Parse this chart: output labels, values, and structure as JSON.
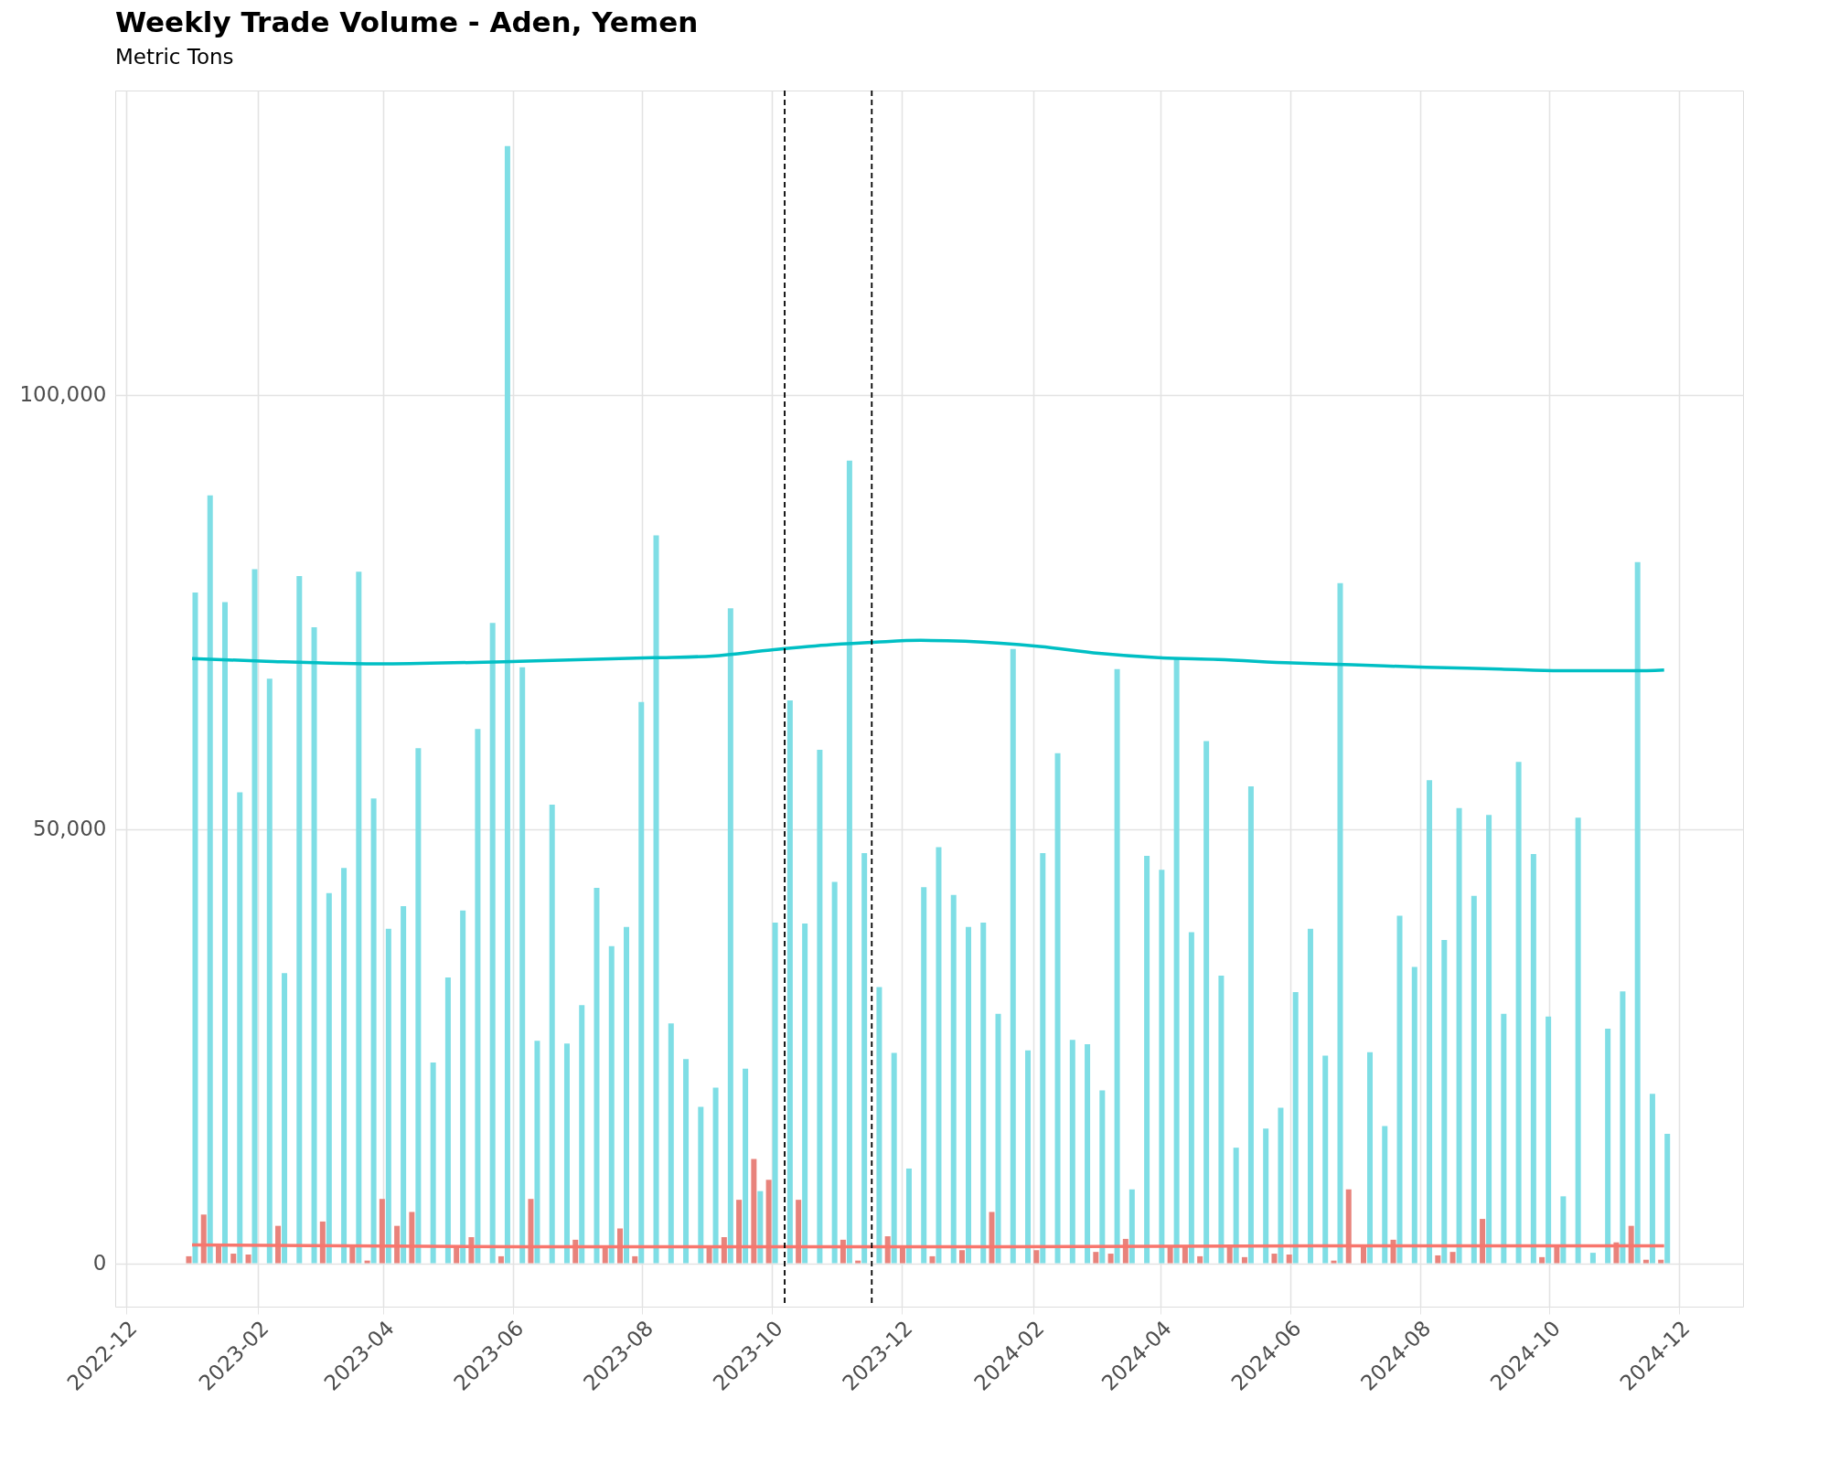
{
  "chart_data": {
    "type": "bar",
    "title": "Weekly Trade Volume - Aden, Yemen",
    "subtitle": "Metric Tons",
    "x": [
      "2023-01-01",
      "2023-01-08",
      "2023-01-15",
      "2023-01-22",
      "2023-01-29",
      "2023-02-05",
      "2023-02-12",
      "2023-02-19",
      "2023-02-26",
      "2023-03-05",
      "2023-03-12",
      "2023-03-19",
      "2023-03-26",
      "2023-04-02",
      "2023-04-09",
      "2023-04-16",
      "2023-04-23",
      "2023-04-30",
      "2023-05-07",
      "2023-05-14",
      "2023-05-21",
      "2023-05-28",
      "2023-06-04",
      "2023-06-11",
      "2023-06-18",
      "2023-06-25",
      "2023-07-02",
      "2023-07-09",
      "2023-07-16",
      "2023-07-23",
      "2023-07-30",
      "2023-08-06",
      "2023-08-13",
      "2023-08-20",
      "2023-08-27",
      "2023-09-03",
      "2023-09-10",
      "2023-09-17",
      "2023-09-24",
      "2023-10-01",
      "2023-10-08",
      "2023-10-15",
      "2023-10-22",
      "2023-10-29",
      "2023-11-05",
      "2023-11-12",
      "2023-11-19",
      "2023-11-26",
      "2023-12-03",
      "2023-12-10",
      "2023-12-17",
      "2023-12-24",
      "2023-12-31",
      "2024-01-07",
      "2024-01-14",
      "2024-01-21",
      "2024-01-28",
      "2024-02-04",
      "2024-02-11",
      "2024-02-18",
      "2024-02-25",
      "2024-03-03",
      "2024-03-10",
      "2024-03-17",
      "2024-03-24",
      "2024-03-31",
      "2024-04-07",
      "2024-04-14",
      "2024-04-21",
      "2024-04-28",
      "2024-05-05",
      "2024-05-12",
      "2024-05-19",
      "2024-05-26",
      "2024-06-02",
      "2024-06-09",
      "2024-06-16",
      "2024-06-23",
      "2024-06-30",
      "2024-07-07",
      "2024-07-14",
      "2024-07-21",
      "2024-07-28",
      "2024-08-04",
      "2024-08-11",
      "2024-08-18",
      "2024-08-25",
      "2024-09-01",
      "2024-09-08",
      "2024-09-15",
      "2024-09-22",
      "2024-09-29",
      "2024-10-06",
      "2024-10-13",
      "2024-10-20",
      "2024-10-27",
      "2024-11-03",
      "2024-11-10",
      "2024-11-17",
      "2024-11-24"
    ],
    "series": [
      {
        "color": "#e8837c",
        "values": [
          800,
          5600,
          2000,
          1100,
          1000,
          null,
          4300,
          null,
          null,
          4800,
          null,
          2000,
          300,
          7400,
          4300,
          5900,
          null,
          null,
          2000,
          3000,
          null,
          800,
          null,
          7400,
          null,
          null,
          2700,
          null,
          2000,
          4000,
          800,
          null,
          null,
          null,
          null,
          2000,
          3000,
          7300,
          12000,
          9600,
          null,
          7300,
          null,
          null,
          2700,
          300,
          null,
          3100,
          2000,
          null,
          800,
          null,
          1500,
          null,
          5900,
          null,
          null,
          1500,
          null,
          null,
          null,
          1300,
          1100,
          2800,
          null,
          null,
          2000,
          2000,
          800,
          null,
          2000,
          700,
          null,
          1100,
          1000,
          null,
          null,
          300,
          8500,
          2000,
          null,
          2700,
          null,
          null,
          900,
          1300,
          null,
          5100,
          null,
          null,
          null,
          700,
          2000,
          null,
          null,
          null,
          2400,
          4300,
          400,
          400
        ]
      },
      {
        "color": "#7fdee5",
        "values": [
          77200,
          88400,
          76100,
          54200,
          79900,
          67300,
          33400,
          79100,
          73200,
          42600,
          45500,
          79600,
          53500,
          38500,
          41100,
          59300,
          23100,
          32900,
          40600,
          61500,
          73700,
          128600,
          68600,
          25600,
          52800,
          25300,
          29700,
          43200,
          36500,
          38700,
          64600,
          83800,
          27600,
          23500,
          18000,
          20200,
          75400,
          22400,
          8300,
          39200,
          64800,
          39100,
          59100,
          43900,
          92400,
          47200,
          31800,
          24200,
          10900,
          43300,
          47900,
          42400,
          38700,
          39200,
          28700,
          70700,
          24500,
          47200,
          58700,
          25700,
          25200,
          19900,
          68400,
          8500,
          46900,
          45300,
          69700,
          38100,
          60100,
          33100,
          13300,
          54900,
          15500,
          17900,
          31200,
          38500,
          23900,
          78300,
          null,
          24300,
          15800,
          40000,
          34100,
          55600,
          37200,
          52400,
          42300,
          51600,
          28700,
          57700,
          47100,
          28400,
          7700,
          51300,
          1200,
          27000,
          31300,
          80700,
          19500,
          14900
        ]
      },
      {
        "type": "line",
        "color": "#00bfc4",
        "x": [
          "2023-01-01",
          "2023-02-05",
          "2023-04-02",
          "2023-06-04",
          "2023-08-06",
          "2023-09-03",
          "2023-10-01",
          "2023-10-29",
          "2023-11-19",
          "2023-12-10",
          "2023-12-31",
          "2024-02-04",
          "2024-03-03",
          "2024-03-31",
          "2024-04-28",
          "2024-06-02",
          "2024-06-30",
          "2024-08-04",
          "2024-09-08",
          "2024-10-06",
          "2024-11-10",
          "2024-11-24"
        ],
        "values": [
          69600,
          69300,
          69000,
          69300,
          69700,
          69900,
          70600,
          71200,
          71500,
          71700,
          71600,
          71000,
          70200,
          69700,
          69500,
          69100,
          68900,
          68600,
          68400,
          68200,
          68200,
          68300
        ]
      },
      {
        "type": "line",
        "color": "#f8766d",
        "x": [
          "2023-01-01",
          "2023-06-04",
          "2023-12-31",
          "2024-06-30",
          "2024-11-24"
        ],
        "values": [
          2100,
          1900,
          1900,
          2000,
          2000
        ]
      }
    ],
    "xlim": [
      "2022-11-28",
      "2024-12-29"
    ],
    "xticks": [
      "2022-12",
      "2023-02",
      "2023-04",
      "2023-06",
      "2023-08",
      "2023-10",
      "2023-12",
      "2024-02",
      "2024-04",
      "2024-06",
      "2024-08",
      "2024-10",
      "2024-12"
    ],
    "ylim": [
      -5000,
      135000
    ],
    "yticks": [
      {
        "value": 0,
        "label": "0"
      },
      {
        "value": 50000,
        "label": "50,000"
      },
      {
        "value": 100000,
        "label": "100,000"
      }
    ],
    "ref_lines": [
      {
        "axis": "x",
        "value": "2023-10-07",
        "color": "#000000",
        "line_style": "dashed"
      },
      {
        "axis": "x",
        "value": "2023-11-17",
        "color": "#000000",
        "line_style": "dashed"
      }
    ],
    "grid": true,
    "line_style": "solid"
  }
}
